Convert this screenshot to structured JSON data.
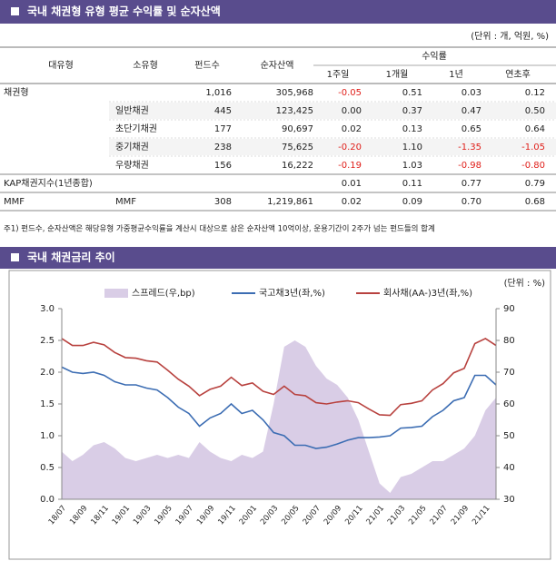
{
  "header": {
    "title": "국내 채권형 유형 평균 수익률 및 순자산액",
    "unit": "(단위 : 개, 억원, %)"
  },
  "table": {
    "headers": [
      "대유형",
      "소유형",
      "펀드수",
      "순자산액"
    ],
    "group_header": "수익률",
    "sub_headers": [
      "1주일",
      "1개월",
      "1년",
      "연초후"
    ],
    "rows": [
      [
        "채권형",
        null,
        "1,016",
        "305,968",
        "-0.05",
        "0.51",
        "0.03",
        "0.12"
      ],
      [
        null,
        "일반채권",
        "445",
        "123,425",
        "0.00",
        "0.37",
        "0.47",
        "0.50"
      ],
      [
        null,
        "초단기채권",
        "177",
        "90,697",
        "0.02",
        "0.13",
        "0.65",
        "0.64"
      ],
      [
        null,
        "중기채권",
        "238",
        "75,625",
        "-0.20",
        "1.10",
        "-1.35",
        "-1.05"
      ],
      [
        null,
        "우량채권",
        "156",
        "16,222",
        "-0.19",
        "1.03",
        "-0.98",
        "-0.80"
      ],
      [
        "KAP채권지수(1년종합)",
        null,
        null,
        null,
        "0.01",
        "0.11",
        "0.77",
        "0.79"
      ],
      [
        "MMF",
        "MMF",
        "308",
        "1,219,861",
        "0.02",
        "0.09",
        "0.70",
        "0.68"
      ]
    ]
  },
  "footnote": "주1) 펀드수, 순자산액은 해당유형 가중평균수익률을 계산시 대상으로 삼은 순자산액 10억이상, 운용기간이 2주가 넘는 펀드들의 합계",
  "section2": {
    "title": "국내 채권금리 추이"
  },
  "chart_data": {
    "type": "line",
    "unit": "(단위 : %)",
    "categories": [
      "18/07",
      null,
      "18/09",
      null,
      "18/11",
      null,
      "19/01",
      null,
      "19/03",
      null,
      "19/05",
      null,
      "19/07",
      null,
      "19/09",
      null,
      "19/11",
      null,
      "20/01",
      null,
      "20/03",
      null,
      "20/05",
      null,
      "20/07",
      null,
      "20/09",
      null,
      "20/11",
      null,
      "21/01",
      null,
      "21/03",
      null,
      "21/05",
      null,
      "21/07",
      null,
      "21/09",
      null,
      "21/11",
      null
    ],
    "series": [
      {
        "name": "스프레드(우,bp)",
        "type": "area",
        "axis": "y2",
        "color": "#d9cde6",
        "values": [
          45,
          42,
          44,
          47,
          48,
          46,
          43,
          42,
          43,
          44,
          43,
          44,
          43,
          48,
          45,
          43,
          42,
          44,
          43,
          45,
          60,
          78,
          80,
          78,
          72,
          68,
          66,
          62,
          55,
          45,
          35,
          32,
          37,
          38,
          40,
          42,
          42,
          44,
          46,
          50,
          58,
          62
        ]
      },
      {
        "name": "국고채3년(좌,%)",
        "type": "line",
        "color": "#3c6db3",
        "values": [
          2.08,
          2.0,
          1.98,
          2.0,
          1.95,
          1.85,
          1.8,
          1.8,
          1.75,
          1.72,
          1.6,
          1.45,
          1.35,
          1.15,
          1.28,
          1.35,
          1.5,
          1.35,
          1.4,
          1.25,
          1.05,
          1.0,
          0.85,
          0.85,
          0.8,
          0.82,
          0.87,
          0.93,
          0.97,
          0.97,
          0.98,
          1.0,
          1.12,
          1.13,
          1.15,
          1.3,
          1.4,
          1.55,
          1.6,
          1.95,
          1.95,
          1.8
        ]
      },
      {
        "name": "회사채(AA-)3년(좌,%)",
        "type": "line",
        "color": "#b8423f",
        "values": [
          2.53,
          2.42,
          2.42,
          2.47,
          2.43,
          2.31,
          2.23,
          2.22,
          2.18,
          2.16,
          2.03,
          1.89,
          1.78,
          1.63,
          1.73,
          1.78,
          1.92,
          1.79,
          1.83,
          1.7,
          1.65,
          1.78,
          1.65,
          1.63,
          1.52,
          1.5,
          1.53,
          1.55,
          1.52,
          1.42,
          1.33,
          1.32,
          1.49,
          1.51,
          1.55,
          1.72,
          1.82,
          1.99,
          2.06,
          2.45,
          2.53,
          2.42
        ]
      }
    ],
    "ylim": [
      0,
      3
    ],
    "yticks": [
      {
        "value": 0,
        "label": "0.0"
      },
      0.5,
      {
        "value": 1,
        "label": "1.0"
      },
      1.5,
      {
        "value": 2,
        "label": "2.0"
      },
      2.5,
      {
        "value": 3,
        "label": "3.0"
      }
    ],
    "y2lim": [
      30,
      90
    ],
    "y2ticks": [
      30,
      40,
      50,
      60,
      70,
      80,
      90
    ],
    "grid": false,
    "legend": "top"
  }
}
